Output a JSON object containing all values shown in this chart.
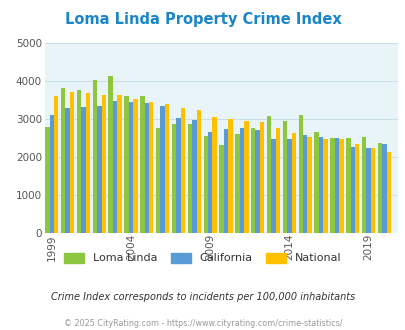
{
  "title": "Loma Linda Property Crime Index",
  "title_color": "#1a86c7",
  "subtitle": "Crime Index corresponds to incidents per 100,000 inhabitants",
  "footer": "© 2025 CityRating.com - https://www.cityrating.com/crime-statistics/",
  "years": [
    1999,
    2000,
    2001,
    2002,
    2003,
    2004,
    2005,
    2006,
    2007,
    2008,
    2009,
    2010,
    2011,
    2012,
    2013,
    2014,
    2015,
    2016,
    2017,
    2018,
    2019,
    2020
  ],
  "loma_linda": [
    2780,
    3800,
    3770,
    4030,
    4130,
    3610,
    3590,
    2760,
    2875,
    2870,
    2555,
    2310,
    2590,
    2770,
    3070,
    2930,
    3100,
    2650,
    2500,
    2490,
    2510,
    2350
  ],
  "california": [
    3110,
    3275,
    3300,
    3340,
    3460,
    3450,
    3410,
    3330,
    3020,
    2980,
    2660,
    2720,
    2760,
    2700,
    2460,
    2470,
    2560,
    2510,
    2490,
    2250,
    2220,
    2330
  ],
  "national": [
    3590,
    3700,
    3680,
    3630,
    3620,
    3530,
    3450,
    3390,
    3290,
    3240,
    3050,
    2985,
    2940,
    2920,
    2760,
    2620,
    2510,
    2470,
    2460,
    2340,
    2220,
    2120
  ],
  "loma_linda_color": "#8dc63f",
  "california_color": "#5b9bd5",
  "national_color": "#ffc000",
  "ylim": [
    0,
    5000
  ],
  "yticks": [
    0,
    1000,
    2000,
    3000,
    4000,
    5000
  ],
  "xtick_labels": [
    "1999",
    "2004",
    "2009",
    "2014",
    "2019"
  ],
  "xtick_positions": [
    1999,
    2004,
    2009,
    2014,
    2019
  ],
  "bar_width": 0.28,
  "grid_color": "#c8dfe8",
  "axis_bg": "#e8f4f8"
}
